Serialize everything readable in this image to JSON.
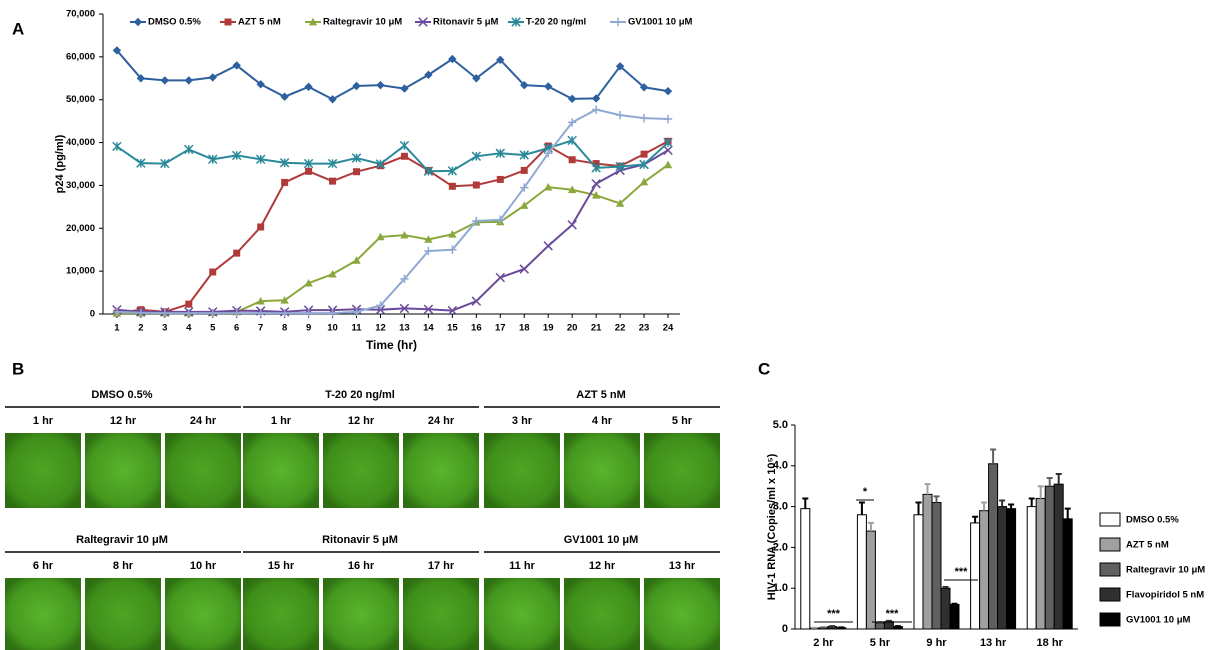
{
  "chart_data": [
    {
      "type": "line",
      "label": "A",
      "x_label": "Time (hr)",
      "y_label": "p24 (pg/ml)",
      "x": [
        1,
        2,
        3,
        4,
        5,
        6,
        7,
        8,
        9,
        10,
        11,
        12,
        13,
        14,
        15,
        16,
        17,
        18,
        19,
        20,
        21,
        22,
        23,
        24
      ],
      "xlim": [
        0.42,
        24.5
      ],
      "xticks": [
        1,
        2,
        3,
        4,
        5,
        6,
        7,
        8,
        9,
        10,
        11,
        12,
        13,
        14,
        15,
        16,
        17,
        18,
        19,
        20,
        21,
        22,
        23,
        24
      ],
      "ylim": [
        0,
        70000
      ],
      "yticks": [
        0,
        {
          "value": 10000,
          "label": "10,000"
        },
        {
          "value": 20000,
          "label": "20,000"
        },
        {
          "value": 30000,
          "label": "30,000"
        },
        {
          "value": 40000,
          "label": "40,000"
        },
        {
          "value": 50000,
          "label": "50,000"
        },
        {
          "value": 60000,
          "label": "60,000"
        },
        {
          "value": 70000,
          "label": "70,000"
        }
      ],
      "legend": "top",
      "series": [
        {
          "name": "DMSO 0.5%",
          "color": "#2e5f9e",
          "marker": "diamond",
          "values": [
            61500,
            55000,
            54500,
            54500,
            55200,
            58000,
            53600,
            50700,
            53000,
            50100,
            53200,
            53400,
            52600,
            55800,
            59500,
            55000,
            59300,
            53400,
            53100,
            50200,
            50300,
            57800,
            52900,
            52000
          ]
        },
        {
          "name": "AZT 5 nM",
          "color": "#b03a3a",
          "marker": "square",
          "values": [
            200,
            1000,
            500,
            2300,
            9800,
            14200,
            20300,
            30700,
            33300,
            31000,
            33200,
            34600,
            36800,
            33500,
            29800,
            30100,
            31400,
            33500,
            39200,
            36000,
            35100,
            34500,
            37300,
            40300
          ]
        },
        {
          "name": "Raltegravir 10 μM",
          "color": "#8aa83c",
          "marker": "triangle",
          "values": [
            200,
            200,
            200,
            200,
            300,
            500,
            3000,
            3200,
            7200,
            9300,
            12500,
            18000,
            18400,
            17400,
            18600,
            21400,
            21500,
            25300,
            29600,
            29000,
            27700,
            25800,
            30800,
            34800
          ]
        },
        {
          "name": "Ritonavir 5 μM",
          "color": "#6a4a9a",
          "marker": "x",
          "values": [
            1000,
            500,
            500,
            500,
            500,
            800,
            700,
            500,
            900,
            900,
            1100,
            1000,
            1300,
            1100,
            800,
            3000,
            8500,
            10500,
            15900,
            20800,
            30400,
            33500,
            34900,
            38200
          ]
        },
        {
          "name": "T-20 20 ng/ml",
          "color": "#2a8a9a",
          "marker": "star",
          "values": [
            39100,
            35200,
            35100,
            38400,
            36100,
            37000,
            36100,
            35300,
            35100,
            35100,
            36400,
            35000,
            39300,
            33300,
            33400,
            36800,
            37500,
            37100,
            38700,
            40500,
            34100,
            34400,
            34900,
            40000
          ]
        },
        {
          "name": "GV1001 10 μM",
          "color": "#8fa9d4",
          "marker": "plus",
          "values": [
            500,
            300,
            200,
            200,
            200,
            200,
            200,
            200,
            200,
            200,
            500,
            2000,
            8200,
            14700,
            15000,
            21700,
            22000,
            29500,
            37500,
            44700,
            47700,
            46400,
            45700,
            45500
          ]
        }
      ]
    },
    {
      "type": "bar",
      "label": "C",
      "y_label": "HIV-1 RNA (Copies/ml x 10⁵)",
      "categories": [
        "2 hr",
        "5 hr",
        "9 hr",
        "13 hr",
        "18 hr"
      ],
      "ylim": [
        0,
        5
      ],
      "yticks": [
        0,
        {
          "value": 1,
          "label": "1.0"
        },
        {
          "value": 2,
          "label": "2.0"
        },
        {
          "value": 3,
          "label": "3.0"
        },
        {
          "value": 4,
          "label": "4.0"
        },
        {
          "value": 5,
          "label": "5.0"
        }
      ],
      "legend": "right",
      "annotations": [
        "***",
        "*",
        "***",
        "***"
      ],
      "series": [
        {
          "name": "DMSO 0.5%",
          "color": "#ffffff",
          "values": [
            2.95,
            2.8,
            2.8,
            2.6,
            3.0
          ],
          "errors": [
            0.25,
            0.3,
            0.3,
            0.15,
            0.2
          ]
        },
        {
          "name": "AZT 5 nM",
          "color": "#a0a0a0",
          "values": [
            0.02,
            2.4,
            3.3,
            2.9,
            3.2
          ],
          "errors": [
            0.01,
            0.2,
            0.25,
            0.2,
            0.3
          ]
        },
        {
          "name": "Raltegravir 10 μM",
          "color": "#606060",
          "values": [
            0.03,
            0.15,
            3.1,
            4.05,
            3.5
          ],
          "errors": [
            0.01,
            0.02,
            0.15,
            0.35,
            0.2
          ]
        },
        {
          "name": "Flavopiridol 5 nM",
          "color": "#303030",
          "values": [
            0.06,
            0.18,
            1.0,
            3.0,
            3.55
          ],
          "errors": [
            0.01,
            0.02,
            0.03,
            0.15,
            0.25
          ]
        },
        {
          "name": "GV1001 10 μM",
          "color": "#000000",
          "values": [
            0.03,
            0.06,
            0.6,
            2.95,
            2.7
          ],
          "errors": [
            0.01,
            0.01,
            0.02,
            0.1,
            0.25
          ]
        }
      ]
    }
  ],
  "panel_b": {
    "label": "B",
    "groups": [
      {
        "title": "DMSO 0.5%",
        "images": [
          "1 hr",
          "12 hr",
          "24 hr"
        ]
      },
      {
        "title": "T-20 20 ng/ml",
        "images": [
          "1 hr",
          "12 hr",
          "24 hr"
        ]
      },
      {
        "title": "AZT 5 nM",
        "images": [
          "3 hr",
          "4 hr",
          "5 hr"
        ]
      },
      {
        "title": "Raltegravir 10 μM",
        "images": [
          "6 hr",
          "8 hr",
          "10 hr"
        ]
      },
      {
        "title": "Ritonavir 5 μM",
        "images": [
          "15 hr",
          "16 hr",
          "17 hr"
        ]
      },
      {
        "title": "GV1001 10 μM",
        "images": [
          "11 hr",
          "12 hr",
          "13 hr"
        ]
      }
    ]
  }
}
